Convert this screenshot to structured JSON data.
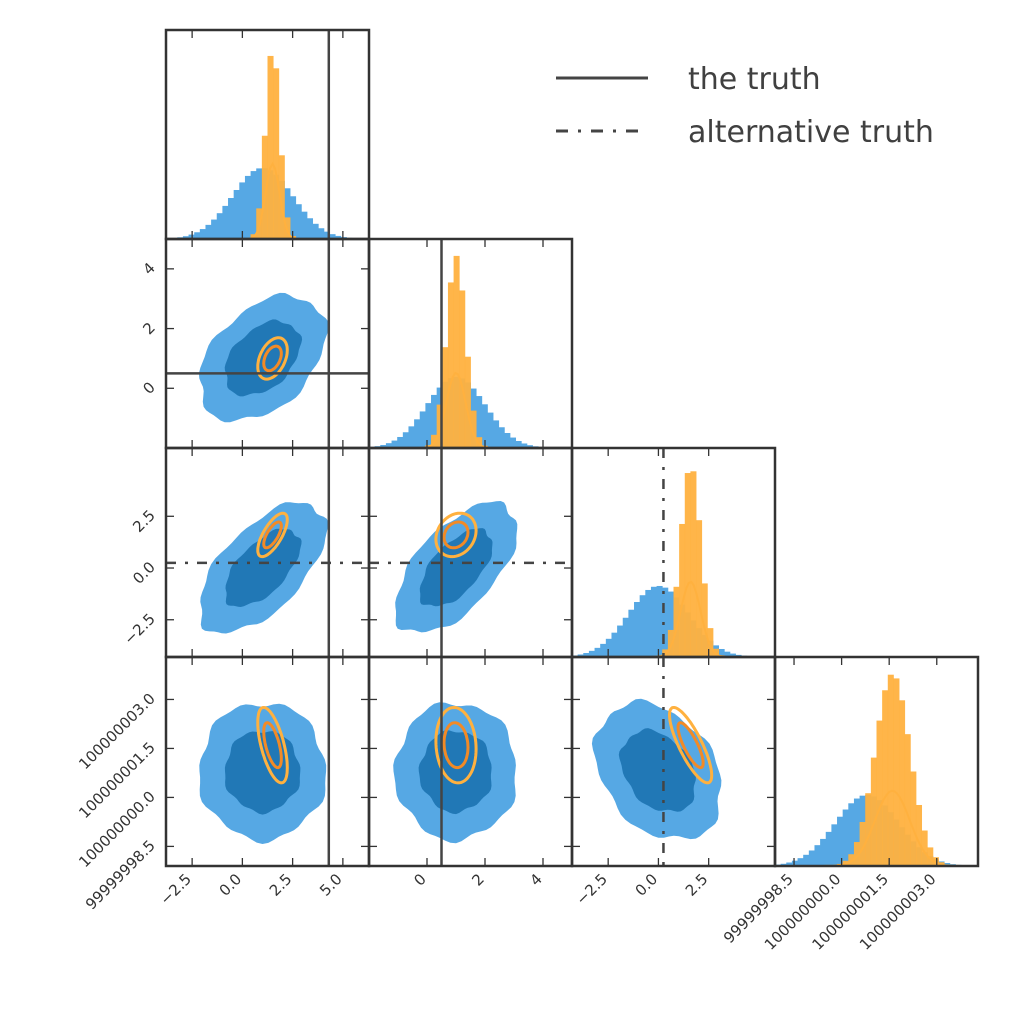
{
  "colors": {
    "blue_light": "#56a8e4",
    "blue_dark": "#2178b6",
    "orange_light": "#ffb13f",
    "orange_dark": "#f28a26",
    "truth_line": "#444444",
    "frame": "#333333"
  },
  "chart_data": {
    "type": "corner",
    "parameters": [
      {
        "range": [
          -3.8,
          6.3
        ],
        "ticks": [
          -2.5,
          0.0,
          2.5,
          5.0
        ],
        "tick_labels": [
          "−2.5",
          "0.0",
          "2.5",
          "5.0"
        ]
      },
      {
        "range": [
          -2.0,
          5.0
        ],
        "ticks": [
          0,
          2,
          4
        ],
        "tick_labels": [
          "0",
          "2",
          "4"
        ]
      },
      {
        "range": [
          -4.3,
          5.8
        ],
        "ticks": [
          -2.5,
          0.0,
          2.5
        ],
        "tick_labels": [
          "−2.5",
          "0.0",
          "2.5"
        ]
      },
      {
        "range": [
          99999997.9,
          100000004.3
        ],
        "ticks": [
          99999998.5,
          100000000.0,
          100000001.5,
          100000003.0
        ],
        "tick_labels": [
          "99999998.5",
          "100000000.0",
          "100000001.5",
          "100000003.0"
        ]
      }
    ],
    "series": [
      {
        "color_light": "#56a8e4",
        "color_dark": "#2178b6",
        "filled": true,
        "mean": [
          1.0,
          1.0,
          0.0,
          100000000.8
        ],
        "sd": [
          1.5,
          1.0,
          1.5,
          1.0
        ],
        "corr": {
          "0-1": 0.4,
          "0-2": 0.6,
          "1-2": 0.6,
          "0-3": 0.0,
          "1-3": 0.0,
          "2-3": -0.3
        }
      },
      {
        "color_light": "#ffb13f",
        "color_dark": "#f28a26",
        "filled": false,
        "mean": [
          1.5,
          1.0,
          1.6,
          100000001.6
        ],
        "sd": [
          0.35,
          0.33,
          0.5,
          0.55
        ],
        "corr": {
          "0-1": 0.4,
          "0-2": 0.7,
          "1-2": 0.2,
          "0-3": -0.6,
          "1-3": -0.1,
          "2-3": -0.8
        }
      }
    ],
    "truths": [
      {
        "label": "the truth",
        "style": "solid",
        "values": [
          4.3,
          0.5,
          null,
          null
        ]
      },
      {
        "label": "alternative truth",
        "style": "dashdot",
        "values": [
          null,
          null,
          0.25,
          null
        ]
      }
    ],
    "legend": {
      "position": "top-right",
      "entries": [
        "the truth",
        "alternative truth"
      ]
    }
  }
}
